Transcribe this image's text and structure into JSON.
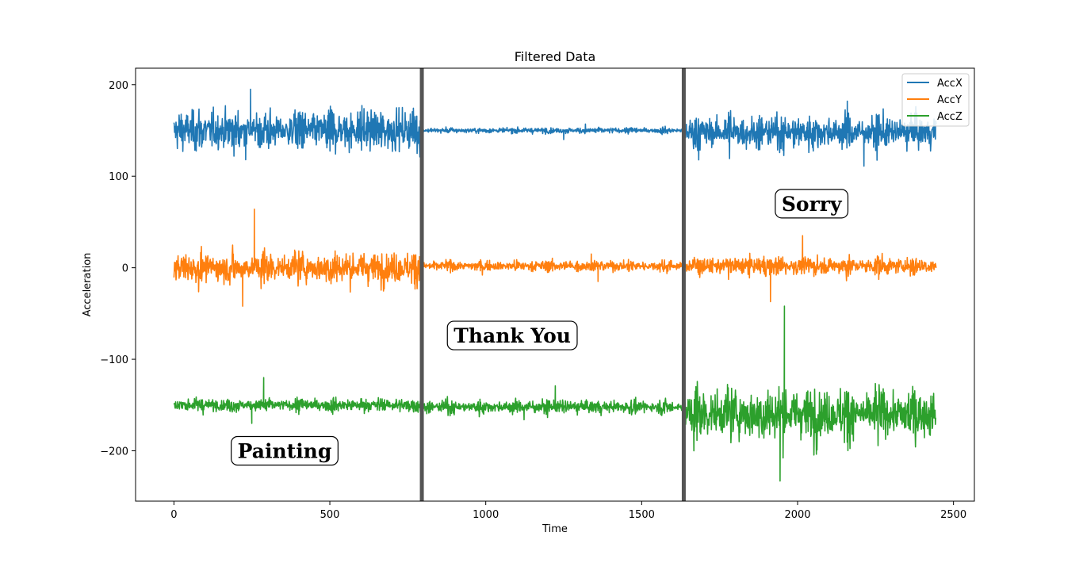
{
  "chart_data": {
    "type": "line",
    "title": "Filtered Data",
    "xlabel": "Time",
    "ylabel": "Acceleration",
    "xlim": [
      -123,
      2567
    ],
    "ylim": [
      -255,
      218
    ],
    "xticks": [
      0,
      500,
      1000,
      1500,
      2000,
      2500
    ],
    "yticks": [
      200,
      100,
      0,
      -100,
      -200
    ],
    "ytick_labels": [
      "200",
      "100",
      "0",
      "−100",
      "−200"
    ],
    "grid": false,
    "legend": {
      "position": "top-right"
    },
    "colors": {
      "AccX": "#1f77b4",
      "AccY": "#ff7f0e",
      "AccZ": "#2ca02c",
      "divider": "#555555"
    },
    "x_range": [
      0,
      2445
    ],
    "series": [
      {
        "name": "AccX",
        "segments": [
          {
            "x": [
              0,
              790
            ],
            "mean": 150,
            "amplitude": 22,
            "max": 195,
            "min": 118
          },
          {
            "x": [
              790,
              1640
            ],
            "mean": 150,
            "amplitude": 3,
            "max": 157,
            "min": 140
          },
          {
            "x": [
              1640,
              2445
            ],
            "mean": 148,
            "amplitude": 18,
            "max": 182,
            "min": 111
          }
        ]
      },
      {
        "name": "AccY",
        "segments": [
          {
            "x": [
              0,
              790
            ],
            "mean": 0,
            "amplitude": 17,
            "max": 64,
            "min": -42
          },
          {
            "x": [
              790,
              1640
            ],
            "mean": 2,
            "amplitude": 6,
            "max": 15,
            "min": -15
          },
          {
            "x": [
              1640,
              2445
            ],
            "mean": 2,
            "amplitude": 10,
            "max": 35,
            "min": -37
          }
        ]
      },
      {
        "name": "AccZ",
        "segments": [
          {
            "x": [
              0,
              790
            ],
            "mean": -150,
            "amplitude": 7,
            "max": -120,
            "min": -170
          },
          {
            "x": [
              790,
              1640
            ],
            "mean": -152,
            "amplitude": 7,
            "max": -129,
            "min": -166
          },
          {
            "x": [
              1640,
              2445
            ],
            "mean": -160,
            "amplitude": 28,
            "max": -42,
            "min": -233
          }
        ]
      }
    ],
    "vertical_lines": [
      795,
      1635
    ],
    "annotations": [
      {
        "text": "Painting",
        "x": 355,
        "y": -200
      },
      {
        "text": "Thank You",
        "x": 1085,
        "y": -74
      },
      {
        "text": "Sorry",
        "x": 2045,
        "y": 70
      }
    ]
  }
}
